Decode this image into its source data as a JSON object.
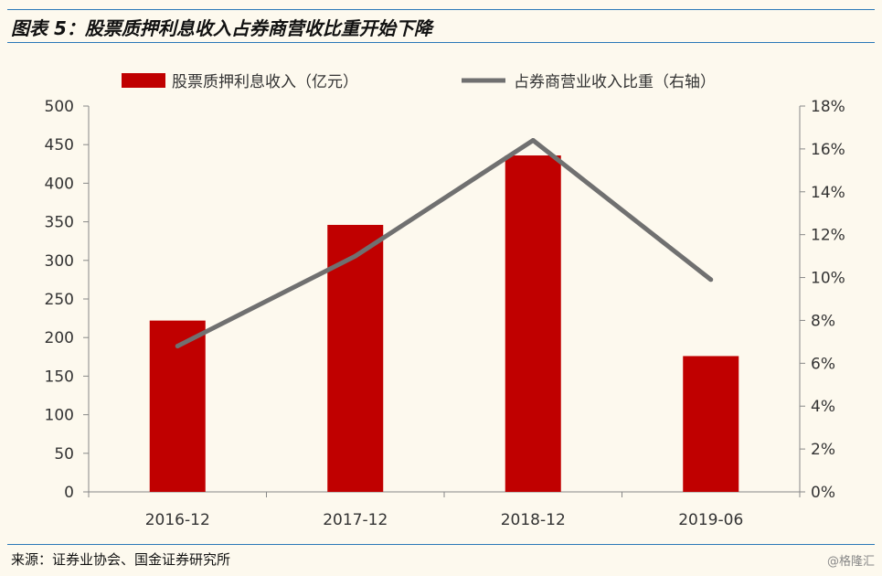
{
  "title": "图表 5：股票质押利息收入占券商营收比重开始下降",
  "source": "来源：证券业协会、国金证券研究所",
  "watermark": "@格隆汇",
  "colors": {
    "bar": "#c00000",
    "line": "#707070",
    "rule": "#2a78b8",
    "background": "#fdf9ee"
  },
  "chart_data": {
    "type": "bar",
    "categories": [
      "2016-12",
      "2017-12",
      "2018-12",
      "2019-06"
    ],
    "series": [
      {
        "name": "股票质押利息收入（亿元）",
        "type": "bar",
        "axis": "left",
        "values": [
          222,
          346,
          436,
          176
        ]
      },
      {
        "name": "占券商营业收入比重（右轴）",
        "type": "line",
        "axis": "right",
        "values": [
          6.8,
          11.0,
          16.4,
          9.9
        ]
      }
    ],
    "ylim_left": [
      0,
      500
    ],
    "yticks_left": [
      "0",
      "50",
      "100",
      "150",
      "200",
      "250",
      "300",
      "350",
      "400",
      "450",
      "500"
    ],
    "ylim_right": [
      0,
      18
    ],
    "yticks_right": [
      "0%",
      "2%",
      "4%",
      "6%",
      "8%",
      "10%",
      "12%",
      "14%",
      "16%",
      "18%"
    ],
    "grid": false,
    "legend_position": "top"
  }
}
